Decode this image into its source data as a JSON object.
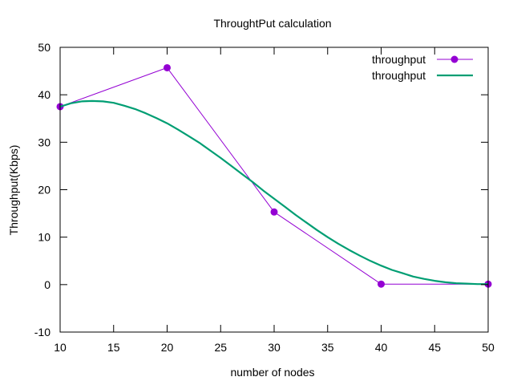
{
  "chart_data": {
    "type": "line",
    "title": "ThroughtPut calculation",
    "xlabel": "number of nodes",
    "ylabel": "Throughput(Kbps)",
    "xlim": [
      10,
      50
    ],
    "ylim": [
      -10,
      50
    ],
    "x_ticks": [
      10,
      15,
      20,
      25,
      30,
      35,
      40,
      45,
      50
    ],
    "y_ticks": [
      -10,
      0,
      10,
      20,
      30,
      40,
      50
    ],
    "grid": false,
    "legend_position": "top-right",
    "series": [
      {
        "name": "throughput",
        "style": "linespoints",
        "color": "#9400d3",
        "x": [
          10,
          20,
          30,
          40,
          50
        ],
        "y": [
          37.5,
          45.7,
          15.3,
          0.1,
          0.1
        ]
      },
      {
        "name": "throughput",
        "style": "line",
        "color": "#009e73",
        "x": [
          10,
          11,
          12,
          13,
          14,
          15,
          16,
          17,
          18,
          19,
          20,
          21,
          22,
          23,
          24,
          25,
          26,
          27,
          28,
          29,
          30,
          31,
          32,
          33,
          34,
          35,
          36,
          37,
          38,
          39,
          40,
          41,
          42,
          43,
          44,
          45,
          46,
          47,
          48,
          49,
          50
        ],
        "y": [
          37.5,
          38.2,
          38.6,
          38.7,
          38.6,
          38.3,
          37.7,
          37.0,
          36.1,
          35.1,
          34.0,
          32.7,
          31.3,
          29.9,
          28.3,
          26.7,
          25.0,
          23.3,
          21.6,
          19.8,
          18.1,
          16.4,
          14.7,
          13.1,
          11.5,
          10.0,
          8.6,
          7.3,
          6.1,
          5.0,
          4.0,
          3.1,
          2.4,
          1.7,
          1.2,
          0.8,
          0.5,
          0.3,
          0.2,
          0.1,
          0.1
        ]
      }
    ]
  }
}
